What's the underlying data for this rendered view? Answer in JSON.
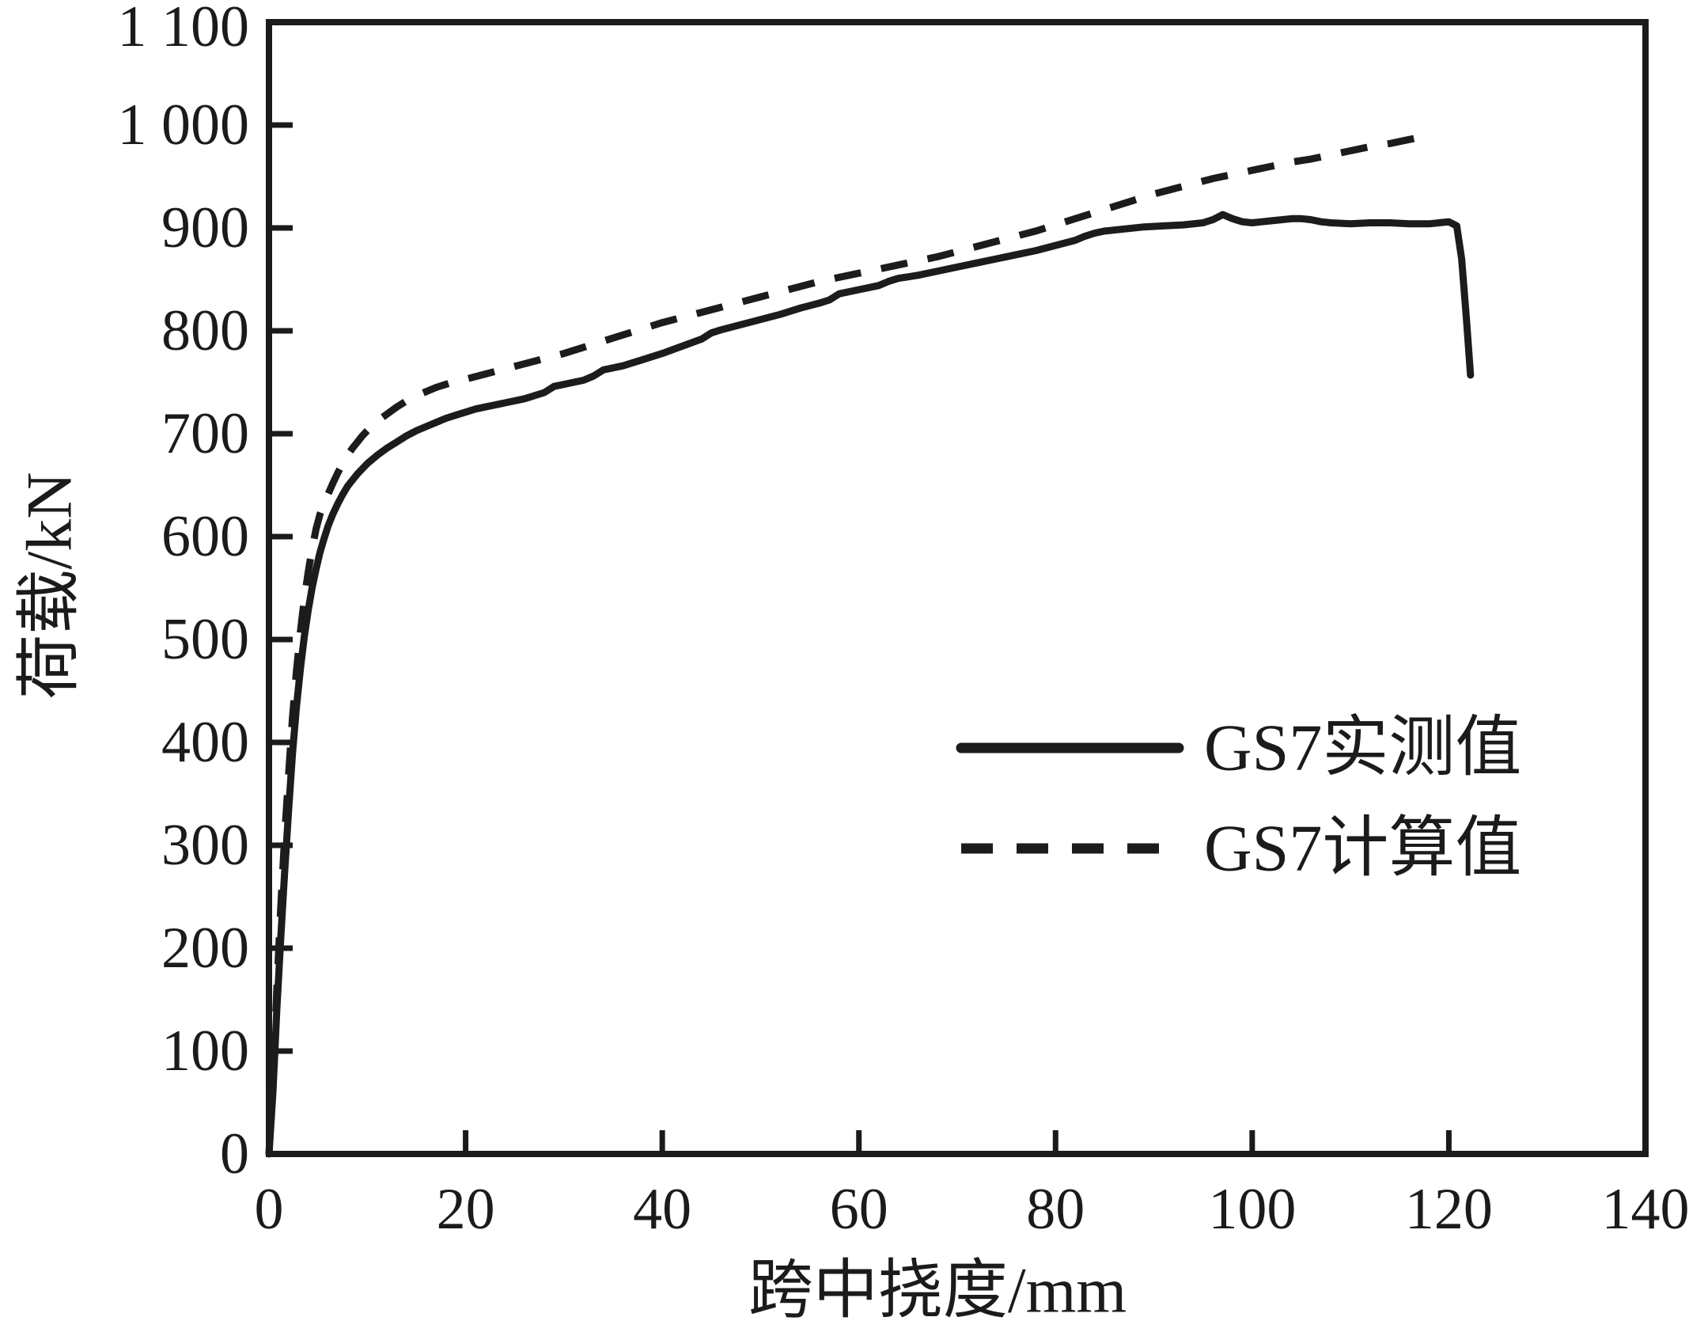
{
  "chart_data": {
    "type": "line",
    "title": "",
    "xlabel": "跨中挠度/mm",
    "ylabel": "荷载/kN",
    "xlim": [
      0,
      140
    ],
    "ylim": [
      0,
      1100
    ],
    "grid": false,
    "legend_position": "inside-right-middle",
    "x_ticks": [
      0,
      20,
      40,
      60,
      80,
      100,
      120,
      140
    ],
    "x_tick_labels": [
      "0",
      "20",
      "40",
      "60",
      "80",
      "100",
      "120",
      "140"
    ],
    "y_ticks": [
      0,
      100,
      200,
      300,
      400,
      500,
      600,
      700,
      800,
      900,
      1000,
      1100
    ],
    "y_tick_labels": [
      "0",
      "100",
      "200",
      "300",
      "400",
      "500",
      "600",
      "700",
      "800",
      "900",
      "1 000",
      "1 100"
    ],
    "series": [
      {
        "name": "GS7实测值",
        "style": "solid",
        "color": "#1c1c1c",
        "points": [
          [
            0,
            0
          ],
          [
            0.4,
            60
          ],
          [
            0.8,
            140
          ],
          [
            1.2,
            210
          ],
          [
            1.6,
            275
          ],
          [
            2,
            335
          ],
          [
            2.4,
            390
          ],
          [
            2.8,
            435
          ],
          [
            3.2,
            472
          ],
          [
            3.6,
            503
          ],
          [
            4,
            529
          ],
          [
            4.4,
            551
          ],
          [
            4.8,
            569
          ],
          [
            5.2,
            585
          ],
          [
            5.6,
            598
          ],
          [
            6,
            610
          ],
          [
            6.5,
            622
          ],
          [
            7,
            632
          ],
          [
            7.5,
            641
          ],
          [
            8,
            649
          ],
          [
            8.5,
            655
          ],
          [
            9,
            661
          ],
          [
            9.5,
            666
          ],
          [
            10,
            671
          ],
          [
            11,
            679
          ],
          [
            12,
            686
          ],
          [
            13,
            692
          ],
          [
            14,
            698
          ],
          [
            15,
            703
          ],
          [
            16,
            707
          ],
          [
            17,
            711
          ],
          [
            18,
            715
          ],
          [
            19,
            718
          ],
          [
            20,
            721
          ],
          [
            21,
            724
          ],
          [
            22,
            726
          ],
          [
            24,
            730
          ],
          [
            26,
            734
          ],
          [
            28,
            740
          ],
          [
            29,
            746
          ],
          [
            30,
            748
          ],
          [
            32,
            752
          ],
          [
            33,
            756
          ],
          [
            34,
            762
          ],
          [
            36,
            766
          ],
          [
            38,
            772
          ],
          [
            40,
            778
          ],
          [
            42,
            785
          ],
          [
            44,
            792
          ],
          [
            45,
            798
          ],
          [
            46,
            801
          ],
          [
            48,
            806
          ],
          [
            50,
            811
          ],
          [
            52,
            816
          ],
          [
            54,
            822
          ],
          [
            56,
            827
          ],
          [
            57,
            830
          ],
          [
            58,
            836
          ],
          [
            60,
            840
          ],
          [
            62,
            844
          ],
          [
            63,
            848
          ],
          [
            64,
            851
          ],
          [
            66,
            854
          ],
          [
            68,
            858
          ],
          [
            70,
            862
          ],
          [
            72,
            866
          ],
          [
            74,
            870
          ],
          [
            76,
            874
          ],
          [
            78,
            878
          ],
          [
            80,
            883
          ],
          [
            82,
            888
          ],
          [
            83,
            892
          ],
          [
            84,
            895
          ],
          [
            85,
            897
          ],
          [
            87,
            899
          ],
          [
            89,
            901
          ],
          [
            91,
            902
          ],
          [
            93,
            903
          ],
          [
            95,
            905
          ],
          [
            96,
            908
          ],
          [
            97,
            913
          ],
          [
            98,
            909
          ],
          [
            99,
            906
          ],
          [
            100,
            905
          ],
          [
            101,
            906
          ],
          [
            102,
            907
          ],
          [
            103,
            908
          ],
          [
            104,
            909
          ],
          [
            105,
            909
          ],
          [
            106,
            908
          ],
          [
            107,
            906
          ],
          [
            108,
            905
          ],
          [
            110,
            904
          ],
          [
            112,
            905
          ],
          [
            114,
            905
          ],
          [
            116,
            904
          ],
          [
            118,
            904
          ],
          [
            119,
            905
          ],
          [
            120,
            906
          ],
          [
            120.8,
            902
          ],
          [
            121.3,
            870
          ],
          [
            121.8,
            810
          ],
          [
            122.2,
            757
          ]
        ]
      },
      {
        "name": "GS7计算值",
        "style": "dashed",
        "color": "#1c1c1c",
        "points": [
          [
            0,
            0
          ],
          [
            0.4,
            70
          ],
          [
            0.8,
            160
          ],
          [
            1.2,
            240
          ],
          [
            1.6,
            310
          ],
          [
            2,
            370
          ],
          [
            2.4,
            425
          ],
          [
            2.8,
            470
          ],
          [
            3.2,
            508
          ],
          [
            3.6,
            540
          ],
          [
            4,
            566
          ],
          [
            4.4,
            589
          ],
          [
            4.8,
            608
          ],
          [
            5.2,
            622
          ],
          [
            5.6,
            632
          ],
          [
            6,
            641
          ],
          [
            6.5,
            652
          ],
          [
            7,
            662
          ],
          [
            7.5,
            671
          ],
          [
            8,
            679
          ],
          [
            8.5,
            686
          ],
          [
            9,
            692
          ],
          [
            9.5,
            698
          ],
          [
            10,
            703
          ],
          [
            11,
            712
          ],
          [
            12,
            719
          ],
          [
            13,
            726
          ],
          [
            14,
            732
          ],
          [
            15,
            737
          ],
          [
            16,
            741
          ],
          [
            17,
            745
          ],
          [
            18,
            748
          ],
          [
            19,
            751
          ],
          [
            20,
            753
          ],
          [
            22,
            758
          ],
          [
            24,
            763
          ],
          [
            26,
            768
          ],
          [
            28,
            773
          ],
          [
            30,
            778
          ],
          [
            32,
            784
          ],
          [
            34,
            790
          ],
          [
            36,
            796
          ],
          [
            38,
            802
          ],
          [
            40,
            808
          ],
          [
            42,
            813
          ],
          [
            44,
            818
          ],
          [
            46,
            823
          ],
          [
            48,
            828
          ],
          [
            50,
            833
          ],
          [
            52,
            838
          ],
          [
            54,
            843
          ],
          [
            56,
            848
          ],
          [
            58,
            852
          ],
          [
            60,
            856
          ],
          [
            62,
            860
          ],
          [
            64,
            864
          ],
          [
            66,
            868
          ],
          [
            68,
            872
          ],
          [
            70,
            877
          ],
          [
            72,
            882
          ],
          [
            74,
            887
          ],
          [
            76,
            892
          ],
          [
            78,
            897
          ],
          [
            80,
            903
          ],
          [
            82,
            909
          ],
          [
            84,
            915
          ],
          [
            86,
            921
          ],
          [
            88,
            927
          ],
          [
            90,
            933
          ],
          [
            92,
            938
          ],
          [
            94,
            943
          ],
          [
            96,
            948
          ],
          [
            98,
            952
          ],
          [
            100,
            956
          ],
          [
            102,
            960
          ],
          [
            104,
            964
          ],
          [
            106,
            967
          ],
          [
            108,
            971
          ],
          [
            110,
            975
          ],
          [
            112,
            979
          ],
          [
            114,
            982
          ],
          [
            116,
            986
          ],
          [
            117,
            988
          ],
          [
            117.8,
            990
          ]
        ]
      }
    ],
    "legend": {
      "entries": [
        {
          "label": "GS7实测值",
          "line_style": "solid"
        },
        {
          "label": "GS7计算值",
          "line_style": "dashed"
        }
      ]
    }
  }
}
